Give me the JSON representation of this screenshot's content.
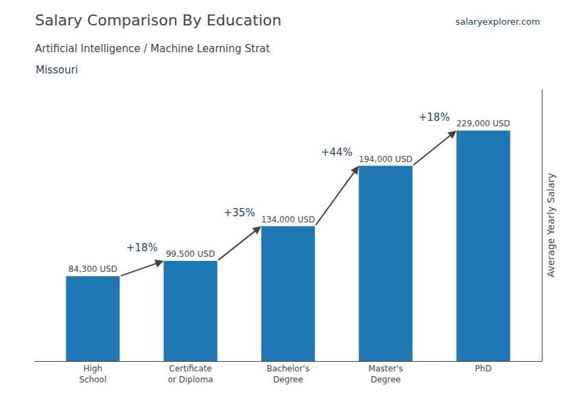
{
  "chart_data": {
    "type": "bar",
    "title": "Salary Comparison By Education",
    "subtitle": "Artificial Intelligence / Machine Learning Strat",
    "ylabel": "Average Yearly Salary",
    "categories": [
      "High\nSchool",
      "Certificate\nor Diploma",
      "Bachelor's\nDegree",
      "Master's\nDegree",
      "PhD"
    ],
    "values": [
      84300,
      99500,
      134000,
      194000,
      229000
    ],
    "value_labels": [
      "84,300 USD",
      "99,500 USD",
      "134,000 USD",
      "194,000 USD",
      "229,000 USD"
    ],
    "data_labels": true,
    "ylim": [
      0,
      270000
    ],
    "tick_labels": "x",
    "grid": false,
    "annotations": [
      {
        "text": "Missouri"
      },
      {
        "text": "salaryexplorer.com"
      },
      {
        "text": "+18%",
        "from": "High\nSchool",
        "to": "Certificate\nor Diploma"
      },
      {
        "text": "+35%",
        "from": "Certificate\nor Diploma",
        "to": "Bachelor's\nDegree"
      },
      {
        "text": "+44%",
        "from": "Bachelor's\nDegree",
        "to": "Master's\nDegree"
      },
      {
        "text": "+18%",
        "from": "Master's\nDegree",
        "to": "PhD"
      }
    ]
  }
}
